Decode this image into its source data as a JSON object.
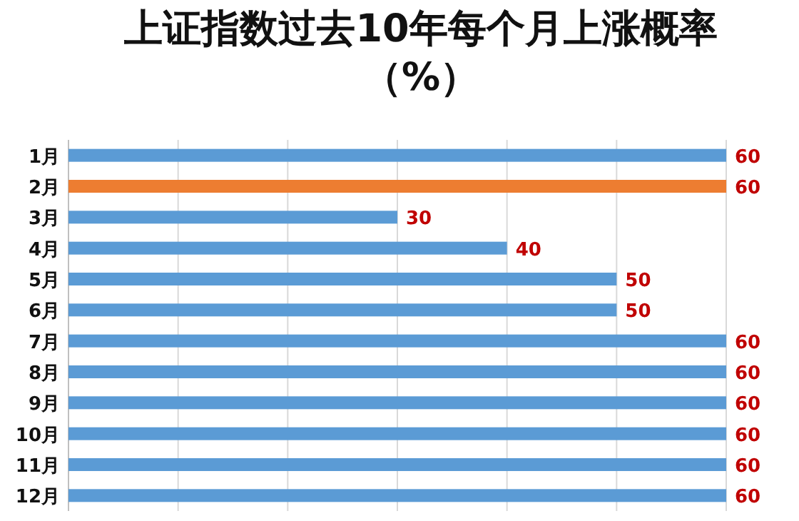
{
  "chart_data": {
    "type": "bar",
    "orientation": "horizontal",
    "title": "上证指数过去10年每个月上涨概率（%）",
    "categories": [
      "1月",
      "2月",
      "3月",
      "4月",
      "5月",
      "6月",
      "7月",
      "8月",
      "9月",
      "10月",
      "11月",
      "12月"
    ],
    "values": [
      60,
      60,
      30,
      40,
      50,
      50,
      60,
      60,
      60,
      60,
      60,
      60
    ],
    "colors": [
      "#5b9bd5",
      "#ed7d31",
      "#5b9bd5",
      "#5b9bd5",
      "#5b9bd5",
      "#5b9bd5",
      "#5b9bd5",
      "#5b9bd5",
      "#5b9bd5",
      "#5b9bd5",
      "#5b9bd5",
      "#5b9bd5"
    ],
    "xlim": [
      0,
      60
    ],
    "xticks": [
      {
        "value": 0,
        "label": null
      },
      {
        "value": 10,
        "label": null
      },
      {
        "value": 20,
        "label": null
      },
      {
        "value": 30,
        "label": null
      },
      {
        "value": 40,
        "label": null
      },
      {
        "value": 50,
        "label": null
      },
      {
        "value": 60,
        "label": null
      }
    ],
    "tick_labels": "y",
    "grid": "x",
    "data_labels": true
  }
}
